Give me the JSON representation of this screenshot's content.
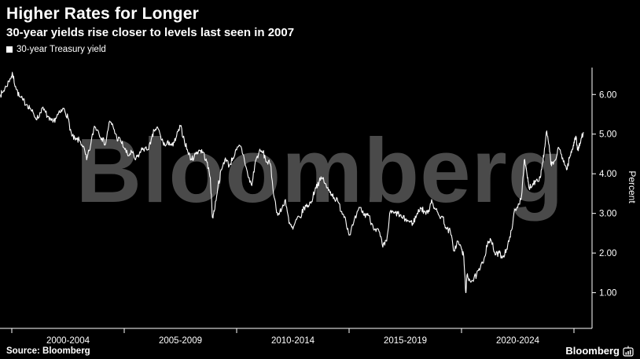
{
  "header": {
    "title": "Higher Rates for Longer",
    "subtitle": "30-year yields rise closer to levels last seen in 2007"
  },
  "legend": {
    "label": "30-year Treasury yield"
  },
  "watermark": "Bloomberg",
  "footer": {
    "source": "Source: Bloomberg",
    "brand": "Bloomberg"
  },
  "colors": {
    "background": "#000000",
    "line": "#ffffff",
    "axis": "#ffffff",
    "text": "#ffffff",
    "watermark": "#4a4a4a"
  },
  "chart_data": {
    "type": "line",
    "title": "Higher Rates for Longer",
    "subtitle": "30-year yields rise closer to levels last seen in 2007",
    "xlabel": "",
    "ylabel": "Percent",
    "ylim": [
      0.1,
      6.6
    ],
    "xlim": [
      1999.5,
      2025.6
    ],
    "grid": false,
    "legend_position": "top-left",
    "y_ticks": [
      1,
      2,
      3,
      4,
      5,
      6
    ],
    "y_tick_labels": [
      "1.00",
      "2.00",
      "3.00",
      "4.00",
      "5.00",
      "6.00"
    ],
    "x_tick_boundaries": [
      2000,
      2005,
      2010,
      2015,
      2020,
      2025
    ],
    "x_tick_labels": [
      "2000-2004",
      "2005-2009",
      "2010-2014",
      "2015-2019",
      "2020-2024"
    ],
    "series": [
      {
        "name": "30-year Treasury yield",
        "color": "#ffffff",
        "points": [
          [
            1999.5,
            6.0
          ],
          [
            1999.58,
            6.05
          ],
          [
            1999.75,
            6.2
          ],
          [
            1999.92,
            6.4
          ],
          [
            2000.04,
            6.5
          ],
          [
            2000.17,
            6.2
          ],
          [
            2000.33,
            5.95
          ],
          [
            2000.5,
            5.85
          ],
          [
            2000.67,
            5.75
          ],
          [
            2000.83,
            5.65
          ],
          [
            2001.0,
            5.45
          ],
          [
            2001.17,
            5.4
          ],
          [
            2001.33,
            5.65
          ],
          [
            2001.5,
            5.55
          ],
          [
            2001.67,
            5.35
          ],
          [
            2001.83,
            5.3
          ],
          [
            2002.0,
            5.45
          ],
          [
            2002.17,
            5.55
          ],
          [
            2002.33,
            5.65
          ],
          [
            2002.5,
            5.4
          ],
          [
            2002.67,
            4.95
          ],
          [
            2002.83,
            4.85
          ],
          [
            2003.0,
            4.85
          ],
          [
            2003.17,
            4.7
          ],
          [
            2003.33,
            4.35
          ],
          [
            2003.5,
            4.7
          ],
          [
            2003.67,
            5.2
          ],
          [
            2003.83,
            5.1
          ],
          [
            2004.0,
            4.9
          ],
          [
            2004.17,
            4.75
          ],
          [
            2004.33,
            5.3
          ],
          [
            2004.5,
            5.2
          ],
          [
            2004.67,
            4.9
          ],
          [
            2004.83,
            4.85
          ],
          [
            2005.0,
            4.65
          ],
          [
            2005.17,
            4.45
          ],
          [
            2005.33,
            4.55
          ],
          [
            2005.5,
            4.35
          ],
          [
            2005.67,
            4.5
          ],
          [
            2005.83,
            4.65
          ],
          [
            2006.0,
            4.6
          ],
          [
            2006.17,
            4.75
          ],
          [
            2006.33,
            5.1
          ],
          [
            2006.5,
            5.15
          ],
          [
            2006.67,
            4.85
          ],
          [
            2006.83,
            4.7
          ],
          [
            2007.0,
            4.8
          ],
          [
            2007.17,
            4.7
          ],
          [
            2007.33,
            4.95
          ],
          [
            2007.5,
            5.2
          ],
          [
            2007.67,
            4.85
          ],
          [
            2007.83,
            4.55
          ],
          [
            2008.0,
            4.35
          ],
          [
            2008.17,
            4.5
          ],
          [
            2008.33,
            4.6
          ],
          [
            2008.5,
            4.55
          ],
          [
            2008.67,
            4.3
          ],
          [
            2008.83,
            3.9
          ],
          [
            2008.92,
            2.9
          ],
          [
            2009.0,
            3.05
          ],
          [
            2009.17,
            3.7
          ],
          [
            2009.33,
            4.1
          ],
          [
            2009.5,
            4.4
          ],
          [
            2009.67,
            4.2
          ],
          [
            2009.83,
            4.4
          ],
          [
            2010.0,
            4.6
          ],
          [
            2010.17,
            4.7
          ],
          [
            2010.33,
            4.4
          ],
          [
            2010.5,
            3.95
          ],
          [
            2010.67,
            3.7
          ],
          [
            2010.83,
            4.3
          ],
          [
            2011.0,
            4.55
          ],
          [
            2011.17,
            4.55
          ],
          [
            2011.33,
            4.3
          ],
          [
            2011.5,
            4.25
          ],
          [
            2011.67,
            3.4
          ],
          [
            2011.83,
            2.95
          ],
          [
            2012.0,
            3.1
          ],
          [
            2012.17,
            3.35
          ],
          [
            2012.33,
            2.75
          ],
          [
            2012.5,
            2.6
          ],
          [
            2012.67,
            2.85
          ],
          [
            2012.83,
            2.9
          ],
          [
            2013.0,
            3.15
          ],
          [
            2013.17,
            3.2
          ],
          [
            2013.33,
            3.3
          ],
          [
            2013.5,
            3.65
          ],
          [
            2013.67,
            3.8
          ],
          [
            2013.83,
            3.9
          ],
          [
            2014.0,
            3.65
          ],
          [
            2014.17,
            3.55
          ],
          [
            2014.33,
            3.4
          ],
          [
            2014.5,
            3.3
          ],
          [
            2014.67,
            3.05
          ],
          [
            2014.83,
            2.9
          ],
          [
            2015.0,
            2.45
          ],
          [
            2015.17,
            2.7
          ],
          [
            2015.33,
            2.95
          ],
          [
            2015.5,
            3.15
          ],
          [
            2015.67,
            2.95
          ],
          [
            2015.83,
            3.0
          ],
          [
            2016.0,
            2.75
          ],
          [
            2016.17,
            2.6
          ],
          [
            2016.33,
            2.55
          ],
          [
            2016.5,
            2.15
          ],
          [
            2016.67,
            2.3
          ],
          [
            2016.83,
            3.05
          ],
          [
            2017.0,
            3.0
          ],
          [
            2017.17,
            3.0
          ],
          [
            2017.33,
            2.9
          ],
          [
            2017.5,
            2.85
          ],
          [
            2017.67,
            2.8
          ],
          [
            2017.83,
            2.75
          ],
          [
            2018.0,
            2.95
          ],
          [
            2018.17,
            3.15
          ],
          [
            2018.33,
            3.05
          ],
          [
            2018.5,
            3.0
          ],
          [
            2018.67,
            3.35
          ],
          [
            2018.83,
            3.1
          ],
          [
            2019.0,
            2.95
          ],
          [
            2019.17,
            2.9
          ],
          [
            2019.33,
            2.6
          ],
          [
            2019.5,
            2.55
          ],
          [
            2019.67,
            2.05
          ],
          [
            2019.83,
            2.3
          ],
          [
            2020.0,
            2.1
          ],
          [
            2020.1,
            1.9
          ],
          [
            2020.19,
            1.0
          ],
          [
            2020.25,
            1.45
          ],
          [
            2020.33,
            1.35
          ],
          [
            2020.5,
            1.3
          ],
          [
            2020.67,
            1.45
          ],
          [
            2020.83,
            1.6
          ],
          [
            2021.0,
            1.85
          ],
          [
            2021.17,
            2.3
          ],
          [
            2021.33,
            2.3
          ],
          [
            2021.5,
            1.95
          ],
          [
            2021.67,
            2.0
          ],
          [
            2021.83,
            1.9
          ],
          [
            2022.0,
            2.1
          ],
          [
            2022.17,
            2.4
          ],
          [
            2022.33,
            3.0
          ],
          [
            2022.5,
            3.15
          ],
          [
            2022.67,
            3.45
          ],
          [
            2022.79,
            4.35
          ],
          [
            2022.92,
            3.95
          ],
          [
            2023.0,
            3.65
          ],
          [
            2023.17,
            3.75
          ],
          [
            2023.33,
            3.85
          ],
          [
            2023.5,
            3.9
          ],
          [
            2023.58,
            4.2
          ],
          [
            2023.67,
            4.5
          ],
          [
            2023.79,
            5.08
          ],
          [
            2023.92,
            4.55
          ],
          [
            2024.0,
            4.2
          ],
          [
            2024.17,
            4.35
          ],
          [
            2024.33,
            4.65
          ],
          [
            2024.5,
            4.4
          ],
          [
            2024.67,
            4.1
          ],
          [
            2024.83,
            4.45
          ],
          [
            2024.92,
            4.6
          ],
          [
            2025.0,
            4.8
          ],
          [
            2025.08,
            4.95
          ],
          [
            2025.17,
            4.6
          ],
          [
            2025.25,
            4.7
          ],
          [
            2025.33,
            4.9
          ],
          [
            2025.42,
            5.05
          ]
        ]
      }
    ]
  }
}
